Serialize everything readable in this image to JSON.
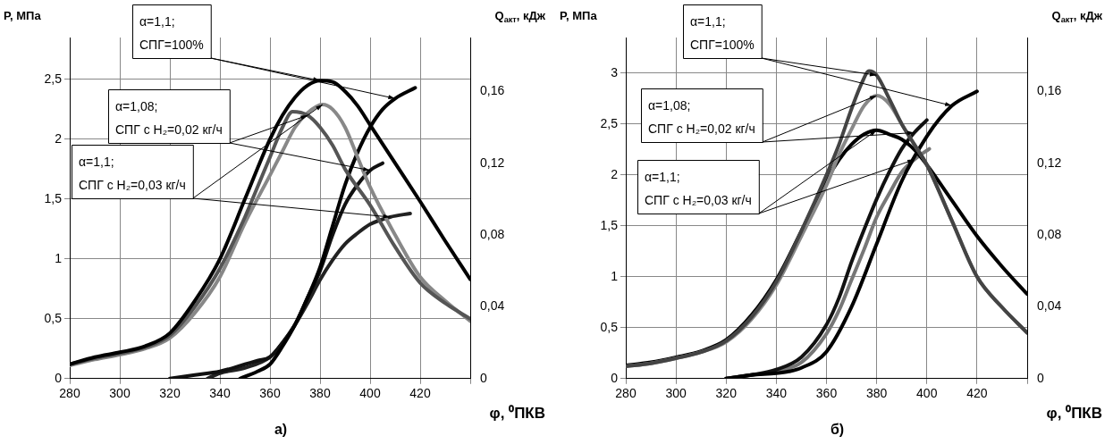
{
  "chart_data": [
    {
      "type": "line",
      "title": "а)",
      "xlabel": "φ, ⁰ПКВ",
      "ylabel": "P, МПа",
      "y2label": "Q$_{акт}$, кДж",
      "grid": true,
      "xlim": [
        280,
        440
      ],
      "xticks": [
        280,
        300,
        320,
        340,
        360,
        380,
        400,
        420,
        {
          "value": 440,
          "label": null
        }
      ],
      "ylim": [
        0,
        2.85
      ],
      "yticks": [
        0,
        {
          "value": 0.5,
          "label": "0,5"
        },
        1,
        {
          "value": 1.5,
          "label": "1,5"
        },
        2,
        {
          "value": 2.5,
          "label": "2,5"
        }
      ],
      "y2lim": [
        0,
        0.19
      ],
      "y2ticks": [
        0,
        {
          "value": 0.04,
          "label": "0,04"
        },
        {
          "value": 0.08,
          "label": "0,08"
        },
        {
          "value": 0.12,
          "label": "0,12"
        },
        {
          "value": 0.16,
          "label": "0,16"
        }
      ],
      "annotations": [
        {
          "text": "α=1,1;\nСПГ=100%",
          "x": 380,
          "y": 2.49
        },
        {
          "text": "α=1,08;\nСПГ с H₂=0,02 кг/ч",
          "x": 375,
          "y": 2.2
        },
        {
          "text": "α=1,1;\nСПГ с H₂=0,03 кг/ч",
          "x": 381,
          "y": 2.29
        }
      ],
      "series": [
        {
          "color": "#000000",
          "x": [
            280,
            290,
            300,
            310,
            320,
            330,
            340,
            350,
            360,
            365,
            370,
            375,
            380,
            385,
            390,
            395,
            400,
            410,
            420,
            430,
            440
          ],
          "values": [
            0.12,
            0.18,
            0.22,
            0.27,
            0.38,
            0.65,
            1.0,
            1.5,
            2.0,
            2.2,
            2.35,
            2.45,
            2.49,
            2.48,
            2.4,
            2.28,
            2.12,
            1.8,
            1.48,
            1.15,
            0.83
          ]
        },
        {
          "color": "#555555",
          "x": [
            280,
            290,
            300,
            310,
            320,
            330,
            340,
            350,
            355,
            360,
            365,
            369,
            375,
            380,
            385,
            390,
            400,
            410,
            420,
            430,
            440
          ],
          "values": [
            0.12,
            0.17,
            0.21,
            0.26,
            0.36,
            0.6,
            0.92,
            1.35,
            1.6,
            1.85,
            2.1,
            2.23,
            2.2,
            2.1,
            1.95,
            1.75,
            1.45,
            1.1,
            0.8,
            0.63,
            0.5
          ]
        },
        {
          "color": "#888888",
          "x": [
            280,
            290,
            300,
            310,
            320,
            330,
            340,
            350,
            360,
            365,
            370,
            375,
            381,
            385,
            390,
            395,
            400,
            410,
            420,
            430,
            440
          ],
          "values": [
            0.11,
            0.16,
            0.2,
            0.25,
            0.34,
            0.55,
            0.85,
            1.3,
            1.7,
            1.9,
            2.1,
            2.22,
            2.29,
            2.25,
            2.1,
            1.85,
            1.6,
            1.2,
            0.85,
            0.65,
            0.48
          ]
        },
        {
          "color": "#000000",
          "axis": "y2",
          "x": [
            348,
            355,
            360,
            365,
            370,
            375,
            380,
            385,
            390,
            395,
            400,
            405,
            410,
            418
          ],
          "values": [
            0,
            0.004,
            0.008,
            0.018,
            0.03,
            0.045,
            0.062,
            0.085,
            0.108,
            0.126,
            0.14,
            0.15,
            0.156,
            0.162
          ]
        },
        {
          "color": "#111111",
          "axis": "y2",
          "x": [
            320,
            330,
            340,
            350,
            355,
            360,
            365,
            370,
            375,
            380,
            385,
            390,
            395,
            400,
            405
          ],
          "values": [
            0,
            0.002,
            0.004,
            0.008,
            0.01,
            0.012,
            0.02,
            0.03,
            0.045,
            0.06,
            0.08,
            0.097,
            0.108,
            0.116,
            0.12
          ]
        },
        {
          "color": "#222222",
          "axis": "y2",
          "x": [
            335,
            340,
            350,
            360,
            365,
            370,
            375,
            380,
            385,
            390,
            395,
            400,
            408,
            416
          ],
          "values": [
            0,
            0.003,
            0.006,
            0.012,
            0.02,
            0.03,
            0.042,
            0.055,
            0.066,
            0.075,
            0.081,
            0.086,
            0.09,
            0.092
          ]
        }
      ]
    },
    {
      "type": "line",
      "title": "б)",
      "xlabel": "φ, ⁰ПКВ",
      "ylabel": "P, МПа",
      "y2label": "Q$_{акт}$, кДж",
      "grid": true,
      "xlim": [
        280,
        440
      ],
      "xticks": [
        280,
        300,
        320,
        340,
        360,
        380,
        400,
        420,
        {
          "value": 440,
          "label": null
        }
      ],
      "ylim": [
        0,
        3.35
      ],
      "yticks": [
        0,
        {
          "value": 0.5,
          "label": "0,5"
        },
        1,
        {
          "value": 1.5,
          "label": "1,5"
        },
        2,
        {
          "value": 2.5,
          "label": "2,5"
        },
        3
      ],
      "y2lim": [
        0,
        0.19
      ],
      "y2ticks": [
        0,
        {
          "value": 0.04,
          "label": "0,04"
        },
        {
          "value": 0.08,
          "label": "0,08"
        },
        {
          "value": 0.12,
          "label": "0,12"
        },
        {
          "value": 0.16,
          "label": "0,16"
        }
      ],
      "annotations": [
        {
          "text": "α=1,1;\nСПГ=100%",
          "x": 380,
          "y": 2.98
        },
        {
          "text": "α=1,08;\nСПГ с H₂=0,02 кг/ч",
          "x": 380,
          "y": 2.78
        },
        {
          "text": "α=1,1;\nСПГ с H₂=0,03 кг/ч",
          "x": 380,
          "y": 2.44
        }
      ],
      "series": [
        {
          "color": "#444444",
          "x": [
            280,
            290,
            300,
            310,
            320,
            330,
            340,
            350,
            360,
            365,
            370,
            374,
            377,
            380,
            385,
            390,
            395,
            400,
            410,
            420,
            430,
            440
          ],
          "values": [
            0.12,
            0.15,
            0.2,
            0.26,
            0.37,
            0.6,
            0.95,
            1.45,
            2.0,
            2.3,
            2.65,
            2.9,
            3.02,
            2.98,
            2.75,
            2.5,
            2.3,
            2.1,
            1.55,
            1.0,
            0.7,
            0.45
          ]
        },
        {
          "color": "#888888",
          "x": [
            280,
            290,
            300,
            310,
            320,
            330,
            340,
            350,
            360,
            365,
            370,
            375,
            380,
            385,
            390,
            395,
            400,
            410,
            420,
            430,
            440
          ],
          "values": [
            0.12,
            0.15,
            0.2,
            0.26,
            0.36,
            0.58,
            0.92,
            1.4,
            1.9,
            2.2,
            2.45,
            2.68,
            2.78,
            2.7,
            2.5,
            2.3,
            2.1,
            1.55,
            1.0,
            0.7,
            0.45
          ]
        },
        {
          "color": "#000000",
          "x": [
            280,
            290,
            300,
            310,
            320,
            330,
            340,
            350,
            360,
            365,
            370,
            375,
            380,
            385,
            390,
            395,
            400,
            410,
            420,
            430,
            440
          ],
          "values": [
            0.13,
            0.16,
            0.21,
            0.27,
            0.38,
            0.62,
            0.97,
            1.45,
            1.95,
            2.15,
            2.3,
            2.4,
            2.44,
            2.4,
            2.35,
            2.25,
            2.1,
            1.75,
            1.4,
            1.1,
            0.83
          ]
        },
        {
          "color": "#000000",
          "axis": "y2",
          "x": [
            320,
            330,
            340,
            345,
            350,
            360,
            370,
            380,
            390,
            400,
            410,
            420
          ],
          "values": [
            0,
            0.002,
            0.003,
            0.004,
            0.006,
            0.015,
            0.04,
            0.075,
            0.11,
            0.135,
            0.152,
            0.16
          ]
        },
        {
          "color": "#111111",
          "axis": "y2",
          "x": [
            320,
            330,
            340,
            350,
            360,
            365,
            370,
            375,
            380,
            385,
            390,
            395,
            400
          ],
          "values": [
            0,
            0.002,
            0.005,
            0.012,
            0.03,
            0.045,
            0.065,
            0.083,
            0.1,
            0.115,
            0.128,
            0.137,
            0.144
          ]
        },
        {
          "color": "#777777",
          "axis": "y2",
          "x": [
            320,
            330,
            340,
            350,
            360,
            365,
            370,
            375,
            380,
            385,
            390,
            395,
            401
          ],
          "values": [
            0,
            0.002,
            0.004,
            0.009,
            0.025,
            0.038,
            0.055,
            0.072,
            0.09,
            0.103,
            0.115,
            0.122,
            0.128
          ]
        }
      ]
    }
  ]
}
